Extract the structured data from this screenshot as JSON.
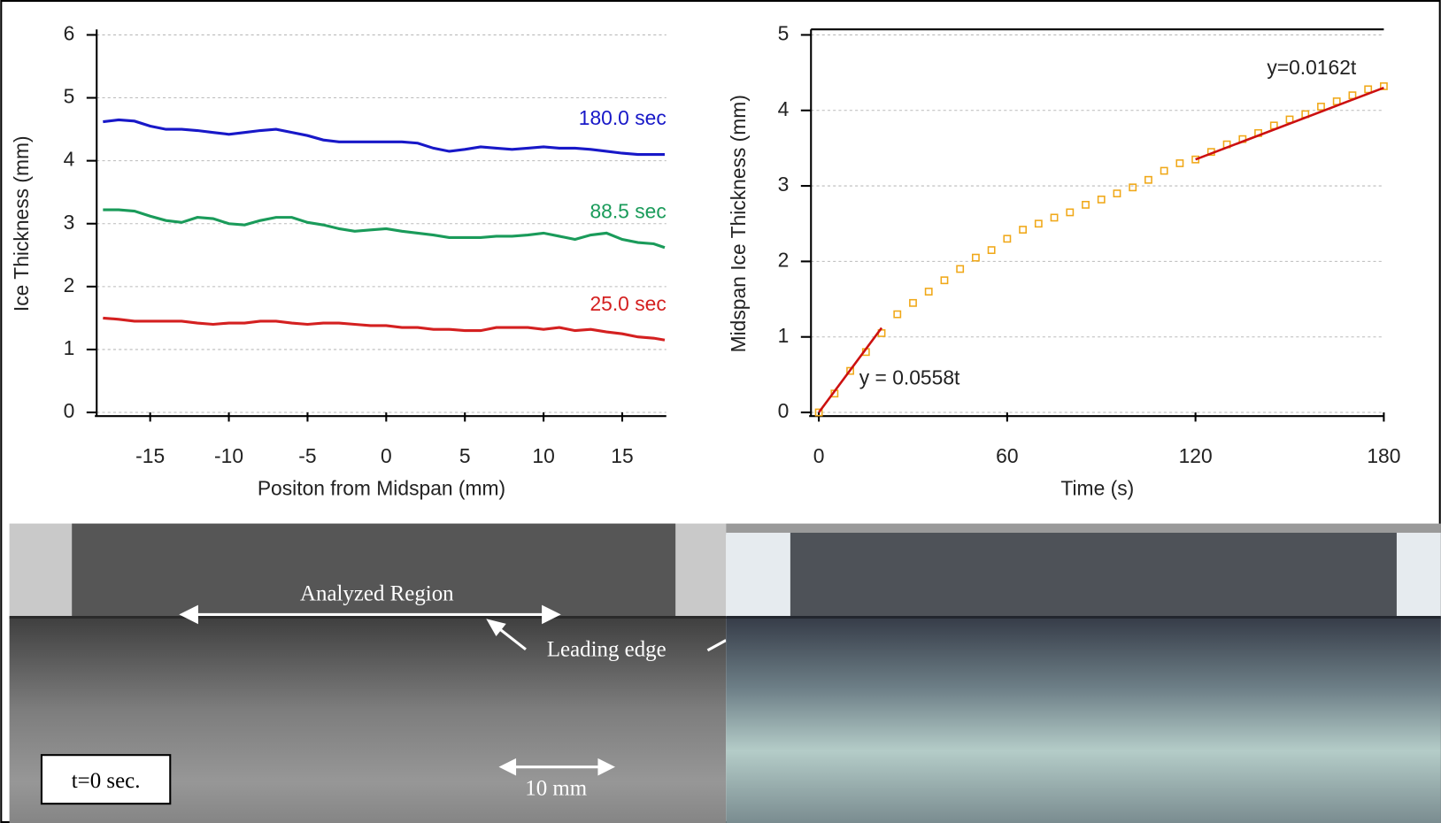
{
  "chart_data": [
    {
      "type": "line",
      "x_label": "Positon from Midspan (mm)",
      "y_label": "Ice Thickness (mm)",
      "x": [
        -18,
        -17,
        -16,
        -15,
        -14,
        -13,
        -12,
        -11,
        -10,
        -9,
        -8,
        -7,
        -6,
        -5,
        -4,
        -3,
        -2,
        -1,
        0,
        1,
        2,
        3,
        4,
        5,
        6,
        7,
        8,
        9,
        10,
        11,
        12,
        13,
        14,
        15,
        16,
        17,
        17.7
      ],
      "series": [
        {
          "name": "180.0 sec",
          "color": "#1818c8",
          "values": [
            4.62,
            4.65,
            4.63,
            4.55,
            4.5,
            4.5,
            4.48,
            4.45,
            4.42,
            4.45,
            4.48,
            4.5,
            4.45,
            4.4,
            4.33,
            4.3,
            4.3,
            4.3,
            4.3,
            4.3,
            4.28,
            4.2,
            4.15,
            4.18,
            4.22,
            4.2,
            4.18,
            4.2,
            4.22,
            4.2,
            4.2,
            4.18,
            4.15,
            4.12,
            4.1,
            4.1,
            4.1
          ]
        },
        {
          "name": "88.5 sec",
          "color": "#1a9b5a",
          "values": [
            3.22,
            3.22,
            3.2,
            3.12,
            3.05,
            3.02,
            3.1,
            3.08,
            3.0,
            2.98,
            3.05,
            3.1,
            3.1,
            3.02,
            2.98,
            2.92,
            2.88,
            2.9,
            2.92,
            2.88,
            2.85,
            2.82,
            2.78,
            2.78,
            2.78,
            2.8,
            2.8,
            2.82,
            2.85,
            2.8,
            2.75,
            2.82,
            2.85,
            2.75,
            2.7,
            2.68,
            2.62
          ]
        },
        {
          "name": "25.0 sec",
          "color": "#d42020",
          "values": [
            1.5,
            1.48,
            1.45,
            1.45,
            1.45,
            1.45,
            1.42,
            1.4,
            1.42,
            1.42,
            1.45,
            1.45,
            1.42,
            1.4,
            1.42,
            1.42,
            1.4,
            1.38,
            1.38,
            1.35,
            1.35,
            1.32,
            1.32,
            1.3,
            1.3,
            1.35,
            1.35,
            1.35,
            1.32,
            1.35,
            1.3,
            1.32,
            1.28,
            1.25,
            1.2,
            1.18,
            1.15
          ]
        }
      ],
      "xlim": [
        -18.4,
        17.8
      ],
      "ylim": [
        0,
        6
      ],
      "xticks": [
        -15,
        -10,
        -5,
        0,
        5,
        10,
        15
      ],
      "yticks": [
        0,
        1,
        2,
        3,
        4,
        5,
        6
      ],
      "grid": true
    },
    {
      "type": "scatter",
      "x_label": "Time (s)",
      "y_label": "Midspan Ice Thickness (mm)",
      "x": [
        0,
        5,
        10,
        15,
        20,
        25,
        30,
        35,
        40,
        45,
        50,
        55,
        60,
        65,
        70,
        75,
        80,
        85,
        90,
        95,
        100,
        105,
        110,
        115,
        120,
        125,
        130,
        135,
        140,
        145,
        150,
        155,
        160,
        165,
        170,
        175,
        180
      ],
      "values": [
        0,
        0.25,
        0.55,
        0.8,
        1.05,
        1.3,
        1.45,
        1.6,
        1.75,
        1.9,
        2.05,
        2.15,
        2.3,
        2.42,
        2.5,
        2.58,
        2.65,
        2.75,
        2.82,
        2.9,
        2.98,
        3.08,
        3.2,
        3.3,
        3.35,
        3.45,
        3.55,
        3.62,
        3.7,
        3.8,
        3.88,
        3.95,
        4.05,
        4.12,
        4.2,
        4.28,
        4.32
      ],
      "color": "#f0a818",
      "fits": [
        {
          "x": [
            0,
            20
          ],
          "values": [
            0,
            1.12
          ],
          "color": "#cc1010"
        },
        {
          "x": [
            120,
            180
          ],
          "values": [
            3.35,
            4.3
          ],
          "color": "#cc1010"
        }
      ],
      "annotations": [
        "y = 0.0558t",
        "y=0.0162t"
      ],
      "xlim": [
        -2.5,
        180
      ],
      "ylim": [
        0,
        5
      ],
      "xticks": [
        0,
        60,
        120,
        180
      ],
      "yticks": [
        0,
        1,
        2,
        3,
        4,
        5
      ],
      "grid": true
    }
  ],
  "photo_labels": {
    "analyzed_region": "Analyzed Region",
    "leading_edge": "Leading edge",
    "time": "t=0 sec.",
    "scale": "10 mm"
  }
}
